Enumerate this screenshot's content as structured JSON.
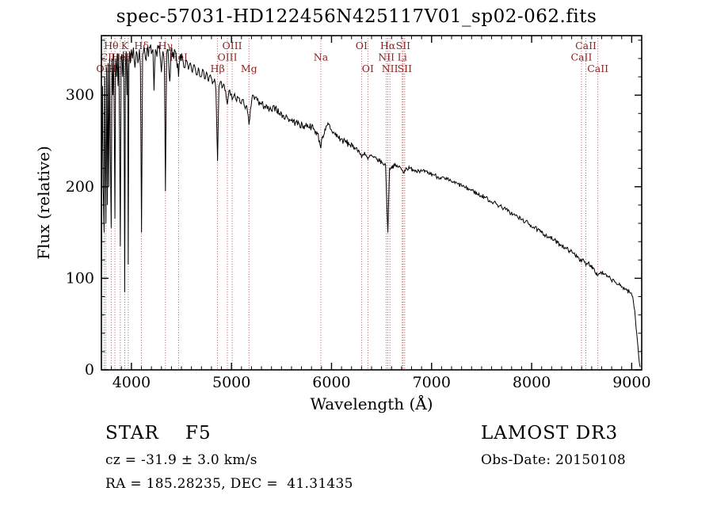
{
  "title": "spec-57031-HD122456N425117V01_sp02-062.fits",
  "footer": {
    "class_label": "STAR    F5",
    "survey": "LAMOST DR3",
    "cz": "cz = -31.9 ± 3.0 km/s",
    "obs_date": "Obs-Date: 20150108",
    "coords": "RA = 185.28235, DEC =  41.31435"
  },
  "chart_data": {
    "type": "line",
    "title": "spec-57031-HD122456N425117V01_sp02-062.fits",
    "xlabel": "Wavelength (Å)",
    "ylabel": "Flux (relative)",
    "xlim": [
      3700,
      9100
    ],
    "ylim": [
      0,
      365
    ],
    "x_major_ticks": [
      4000,
      5000,
      6000,
      7000,
      8000,
      9000
    ],
    "x_minor_step": 100,
    "y_major_ticks": [
      0,
      100,
      200,
      300
    ],
    "y_minor_step": 20,
    "grid": false,
    "legend": null,
    "line_color": "#000000",
    "marker_color": "#b03a3a",
    "marker_label_color": "#8b2323",
    "spectral_lines": [
      {
        "label": "Hθ",
        "wavelength": 3798,
        "row": 1
      },
      {
        "label": "K",
        "wavelength": 3933,
        "row": 1
      },
      {
        "label": "Hδ",
        "wavelength": 4101,
        "row": 1
      },
      {
        "label": "Hγ",
        "wavelength": 4340,
        "row": 1
      },
      {
        "label": "OIII",
        "wavelength": 5007,
        "row": 1
      },
      {
        "label": "OI",
        "wavelength": 6300,
        "row": 1
      },
      {
        "label": "Hα",
        "wavelength": 6563,
        "row": 1
      },
      {
        "label": "SII",
        "wavelength": 6716,
        "row": 1
      },
      {
        "label": "CaII",
        "wavelength": 8542,
        "row": 1
      },
      {
        "label": "CI",
        "wavelength": 3745,
        "row": 2
      },
      {
        "label": "HeI",
        "wavelength": 3889,
        "row": 2
      },
      {
        "label": "H",
        "wavelength": 3968,
        "row": 2
      },
      {
        "label": "HeI",
        "wavelength": 4471,
        "row": 2
      },
      {
        "label": "OIII",
        "wavelength": 4959,
        "row": 2
      },
      {
        "label": "Na",
        "wavelength": 5893,
        "row": 2
      },
      {
        "label": "NII",
        "wavelength": 6548,
        "row": 2
      },
      {
        "label": "Li",
        "wavelength": 6707,
        "row": 2
      },
      {
        "label": "CaII",
        "wavelength": 8498,
        "row": 2
      },
      {
        "label": "OII",
        "wavelength": 3727,
        "row": 3
      },
      {
        "label": "Hη",
        "wavelength": 3835,
        "row": 3
      },
      {
        "label": "Hβ",
        "wavelength": 4861,
        "row": 3
      },
      {
        "label": "Mg",
        "wavelength": 5175,
        "row": 3
      },
      {
        "label": "OI",
        "wavelength": 6363,
        "row": 3
      },
      {
        "label": "NII",
        "wavelength": 6583,
        "row": 3
      },
      {
        "label": "SII",
        "wavelength": 6731,
        "row": 3
      },
      {
        "label": "CaII",
        "wavelength": 8662,
        "row": 3
      }
    ],
    "noise": {
      "seed": 7,
      "step": 6,
      "amp_blue": 8,
      "amp_mid": 4,
      "amp_red": 2.5
    },
    "spectrum": [
      [
        3700,
        75
      ],
      [
        3706,
        240
      ],
      [
        3712,
        310
      ],
      [
        3718,
        200
      ],
      [
        3727,
        150
      ],
      [
        3733,
        320
      ],
      [
        3740,
        210
      ],
      [
        3745,
        160
      ],
      [
        3752,
        330
      ],
      [
        3760,
        180
      ],
      [
        3767,
        335
      ],
      [
        3774,
        200
      ],
      [
        3782,
        340
      ],
      [
        3790,
        230
      ],
      [
        3798,
        155
      ],
      [
        3806,
        340
      ],
      [
        3815,
        300
      ],
      [
        3822,
        345
      ],
      [
        3830,
        250
      ],
      [
        3835,
        165
      ],
      [
        3842,
        340
      ],
      [
        3850,
        320
      ],
      [
        3858,
        345
      ],
      [
        3866,
        310
      ],
      [
        3874,
        345
      ],
      [
        3882,
        250
      ],
      [
        3889,
        135
      ],
      [
        3897,
        340
      ],
      [
        3905,
        345
      ],
      [
        3913,
        320
      ],
      [
        3920,
        348
      ],
      [
        3927,
        280
      ],
      [
        3933,
        85
      ],
      [
        3940,
        330
      ],
      [
        3948,
        348
      ],
      [
        3956,
        300
      ],
      [
        3962,
        340
      ],
      [
        3968,
        115
      ],
      [
        3975,
        330
      ],
      [
        3982,
        348
      ],
      [
        3990,
        335
      ],
      [
        4000,
        350
      ],
      [
        4010,
        340
      ],
      [
        4020,
        352
      ],
      [
        4035,
        330
      ],
      [
        4050,
        348
      ],
      [
        4065,
        335
      ],
      [
        4080,
        350
      ],
      [
        4090,
        330
      ],
      [
        4101,
        150
      ],
      [
        4112,
        345
      ],
      [
        4125,
        352
      ],
      [
        4140,
        340
      ],
      [
        4155,
        350
      ],
      [
        4170,
        342
      ],
      [
        4185,
        352
      ],
      [
        4200,
        345
      ],
      [
        4215,
        350
      ],
      [
        4226,
        305
      ],
      [
        4240,
        350
      ],
      [
        4255,
        342
      ],
      [
        4270,
        352
      ],
      [
        4285,
        345
      ],
      [
        4300,
        325
      ],
      [
        4315,
        348
      ],
      [
        4330,
        330
      ],
      [
        4340,
        195
      ],
      [
        4352,
        345
      ],
      [
        4365,
        350
      ],
      [
        4383,
        315
      ],
      [
        4395,
        348
      ],
      [
        4410,
        342
      ],
      [
        4430,
        350
      ],
      [
        4450,
        340
      ],
      [
        4471,
        320
      ],
      [
        4490,
        345
      ],
      [
        4510,
        340
      ],
      [
        4530,
        330
      ],
      [
        4550,
        338
      ],
      [
        4570,
        328
      ],
      [
        4590,
        335
      ],
      [
        4610,
        325
      ],
      [
        4630,
        333
      ],
      [
        4650,
        322
      ],
      [
        4670,
        330
      ],
      [
        4690,
        320
      ],
      [
        4710,
        328
      ],
      [
        4730,
        318
      ],
      [
        4750,
        325
      ],
      [
        4770,
        315
      ],
      [
        4790,
        322
      ],
      [
        4810,
        312
      ],
      [
        4830,
        318
      ],
      [
        4845,
        305
      ],
      [
        4861,
        228
      ],
      [
        4875,
        310
      ],
      [
        4890,
        315
      ],
      [
        4905,
        308
      ],
      [
        4920,
        312
      ],
      [
        4935,
        305
      ],
      [
        4959,
        290
      ],
      [
        4975,
        305
      ],
      [
        4990,
        300
      ],
      [
        5007,
        295
      ],
      [
        5025,
        300
      ],
      [
        5045,
        295
      ],
      [
        5065,
        298
      ],
      [
        5085,
        292
      ],
      [
        5105,
        295
      ],
      [
        5125,
        290
      ],
      [
        5145,
        288
      ],
      [
        5160,
        282
      ],
      [
        5175,
        268
      ],
      [
        5190,
        285
      ],
      [
        5210,
        300
      ],
      [
        5230,
        295
      ],
      [
        5250,
        298
      ],
      [
        5270,
        292
      ],
      [
        5300,
        290
      ],
      [
        5330,
        288
      ],
      [
        5360,
        285
      ],
      [
        5400,
        283
      ],
      [
        5440,
        287
      ],
      [
        5480,
        280
      ],
      [
        5520,
        278
      ],
      [
        5560,
        275
      ],
      [
        5600,
        272
      ],
      [
        5640,
        270
      ],
      [
        5680,
        268
      ],
      [
        5720,
        266
      ],
      [
        5760,
        268
      ],
      [
        5800,
        265
      ],
      [
        5830,
        262
      ],
      [
        5860,
        258
      ],
      [
        5880,
        250
      ],
      [
        5893,
        242
      ],
      [
        5910,
        255
      ],
      [
        5940,
        262
      ],
      [
        5970,
        268
      ],
      [
        6000,
        262
      ],
      [
        6030,
        258
      ],
      [
        6060,
        255
      ],
      [
        6090,
        252
      ],
      [
        6120,
        250
      ],
      [
        6150,
        248
      ],
      [
        6180,
        246
      ],
      [
        6210,
        244
      ],
      [
        6240,
        242
      ],
      [
        6270,
        240
      ],
      [
        6300,
        232
      ],
      [
        6330,
        238
      ],
      [
        6363,
        230
      ],
      [
        6390,
        234
      ],
      [
        6420,
        232
      ],
      [
        6450,
        230
      ],
      [
        6480,
        228
      ],
      [
        6510,
        226
      ],
      [
        6540,
        224
      ],
      [
        6563,
        150
      ],
      [
        6580,
        220
      ],
      [
        6600,
        222
      ],
      [
        6630,
        223
      ],
      [
        6660,
        222
      ],
      [
        6690,
        221
      ],
      [
        6707,
        218
      ],
      [
        6716,
        216
      ],
      [
        6731,
        218
      ],
      [
        6750,
        220
      ],
      [
        6780,
        220
      ],
      [
        6810,
        219
      ],
      [
        6840,
        218
      ],
      [
        6870,
        218
      ],
      [
        6900,
        217
      ],
      [
        6930,
        216
      ],
      [
        6960,
        215
      ],
      [
        6990,
        214
      ],
      [
        7020,
        213
      ],
      [
        7060,
        211
      ],
      [
        7100,
        210
      ],
      [
        7140,
        208
      ],
      [
        7180,
        207
      ],
      [
        7220,
        205
      ],
      [
        7260,
        203
      ],
      [
        7300,
        201
      ],
      [
        7340,
        199
      ],
      [
        7380,
        197
      ],
      [
        7420,
        195
      ],
      [
        7460,
        192
      ],
      [
        7500,
        190
      ],
      [
        7540,
        188
      ],
      [
        7580,
        185
      ],
      [
        7620,
        183
      ],
      [
        7660,
        180
      ],
      [
        7700,
        178
      ],
      [
        7740,
        175
      ],
      [
        7780,
        172
      ],
      [
        7820,
        170
      ],
      [
        7860,
        167
      ],
      [
        7900,
        164
      ],
      [
        7940,
        162
      ],
      [
        7980,
        159
      ],
      [
        8020,
        156
      ],
      [
        8060,
        153
      ],
      [
        8100,
        150
      ],
      [
        8140,
        147
      ],
      [
        8180,
        145
      ],
      [
        8220,
        142
      ],
      [
        8260,
        139
      ],
      [
        8300,
        136
      ],
      [
        8340,
        133
      ],
      [
        8380,
        130
      ],
      [
        8420,
        127
      ],
      [
        8460,
        124
      ],
      [
        8498,
        118
      ],
      [
        8520,
        120
      ],
      [
        8542,
        114
      ],
      [
        8565,
        117
      ],
      [
        8590,
        114
      ],
      [
        8620,
        111
      ],
      [
        8662,
        103
      ],
      [
        8690,
        107
      ],
      [
        8720,
        105
      ],
      [
        8750,
        102
      ],
      [
        8790,
        99
      ],
      [
        8830,
        96
      ],
      [
        8870,
        93
      ],
      [
        8910,
        90
      ],
      [
        8950,
        87
      ],
      [
        8990,
        84
      ],
      [
        9010,
        80
      ],
      [
        9030,
        65
      ],
      [
        9050,
        40
      ],
      [
        9070,
        15
      ],
      [
        9085,
        3
      ]
    ]
  }
}
